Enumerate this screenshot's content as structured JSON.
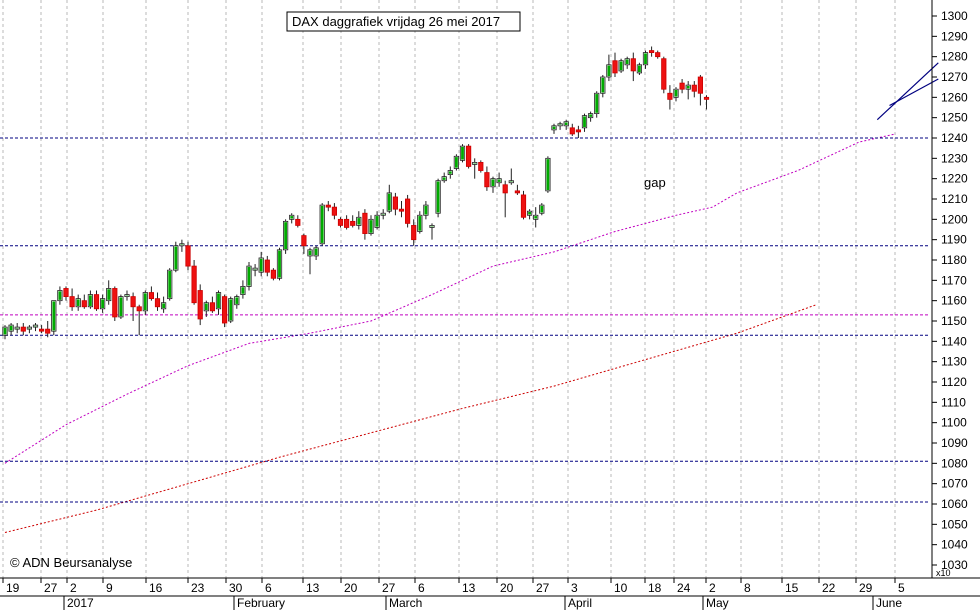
{
  "chart_data": {
    "type": "candlestick",
    "title": "DAX daggrafiek vrijdag 26 mei 2017",
    "copyright": "© ADN Beursanalyse",
    "annotation": "gap",
    "scale_marker": "x10",
    "ylim": [
      1030,
      1305
    ],
    "y_ticks": [
      1030,
      1040,
      1050,
      1060,
      1070,
      1080,
      1090,
      1100,
      1110,
      1120,
      1130,
      1140,
      1150,
      1160,
      1170,
      1180,
      1190,
      1200,
      1210,
      1220,
      1230,
      1240,
      1250,
      1260,
      1270,
      1280,
      1290,
      1300
    ],
    "x_day_labels": [
      "19",
      "27",
      "2",
      "9",
      "16",
      "23",
      "30",
      "6",
      "13",
      "20",
      "27",
      "6",
      "13",
      "20",
      "27",
      "3",
      "10",
      "18",
      "24",
      "2",
      "8",
      "15",
      "22",
      "29",
      "5"
    ],
    "x_month_labels": [
      "2017",
      "February",
      "March",
      "April",
      "May",
      "June"
    ],
    "candles": [
      {
        "o": 1143,
        "h": 1148,
        "l": 1141,
        "c": 1147
      },
      {
        "o": 1145,
        "h": 1149,
        "l": 1143,
        "c": 1148
      },
      {
        "o": 1146,
        "h": 1149,
        "l": 1144,
        "c": 1147
      },
      {
        "o": 1147,
        "h": 1149,
        "l": 1143,
        "c": 1145
      },
      {
        "o": 1146,
        "h": 1148,
        "l": 1144,
        "c": 1147
      },
      {
        "o": 1147,
        "h": 1149,
        "l": 1145,
        "c": 1148
      },
      {
        "o": 1146,
        "h": 1148,
        "l": 1144,
        "c": 1145
      },
      {
        "o": 1146,
        "h": 1150,
        "l": 1142,
        "c": 1144
      },
      {
        "o": 1145,
        "h": 1160,
        "l": 1143,
        "c": 1160
      },
      {
        "o": 1160,
        "h": 1167,
        "l": 1158,
        "c": 1165
      },
      {
        "o": 1166,
        "h": 1167,
        "l": 1160,
        "c": 1162
      },
      {
        "o": 1162,
        "h": 1166,
        "l": 1155,
        "c": 1157
      },
      {
        "o": 1157,
        "h": 1163,
        "l": 1155,
        "c": 1161
      },
      {
        "o": 1160,
        "h": 1163,
        "l": 1156,
        "c": 1157
      },
      {
        "o": 1157,
        "h": 1165,
        "l": 1156,
        "c": 1163
      },
      {
        "o": 1163,
        "h": 1165,
        "l": 1155,
        "c": 1156
      },
      {
        "o": 1156,
        "h": 1163,
        "l": 1154,
        "c": 1161
      },
      {
        "o": 1160,
        "h": 1170,
        "l": 1158,
        "c": 1166
      },
      {
        "o": 1166,
        "h": 1167,
        "l": 1150,
        "c": 1152
      },
      {
        "o": 1152,
        "h": 1163,
        "l": 1151,
        "c": 1162
      },
      {
        "o": 1162,
        "h": 1165,
        "l": 1160,
        "c": 1163
      },
      {
        "o": 1162,
        "h": 1164,
        "l": 1150,
        "c": 1157
      },
      {
        "o": 1157,
        "h": 1158,
        "l": 1143,
        "c": 1155
      },
      {
        "o": 1155,
        "h": 1165,
        "l": 1153,
        "c": 1164
      },
      {
        "o": 1164,
        "h": 1167,
        "l": 1160,
        "c": 1161
      },
      {
        "o": 1161,
        "h": 1164,
        "l": 1155,
        "c": 1157
      },
      {
        "o": 1156,
        "h": 1162,
        "l": 1154,
        "c": 1159
      },
      {
        "o": 1161,
        "h": 1176,
        "l": 1160,
        "c": 1175
      },
      {
        "o": 1175,
        "h": 1189,
        "l": 1174,
        "c": 1187
      },
      {
        "o": 1187,
        "h": 1190,
        "l": 1184,
        "c": 1188
      },
      {
        "o": 1187,
        "h": 1189,
        "l": 1175,
        "c": 1177
      },
      {
        "o": 1177,
        "h": 1180,
        "l": 1158,
        "c": 1159
      },
      {
        "o": 1165,
        "h": 1168,
        "l": 1148,
        "c": 1151
      },
      {
        "o": 1155,
        "h": 1160,
        "l": 1152,
        "c": 1159
      },
      {
        "o": 1159,
        "h": 1162,
        "l": 1154,
        "c": 1155
      },
      {
        "o": 1156,
        "h": 1165,
        "l": 1153,
        "c": 1164
      },
      {
        "o": 1162,
        "h": 1163,
        "l": 1147,
        "c": 1149
      },
      {
        "o": 1150,
        "h": 1162,
        "l": 1149,
        "c": 1161
      },
      {
        "o": 1158,
        "h": 1163,
        "l": 1156,
        "c": 1162
      },
      {
        "o": 1163,
        "h": 1170,
        "l": 1161,
        "c": 1167
      },
      {
        "o": 1167,
        "h": 1179,
        "l": 1165,
        "c": 1177
      },
      {
        "o": 1175,
        "h": 1178,
        "l": 1172,
        "c": 1176
      },
      {
        "o": 1174,
        "h": 1184,
        "l": 1172,
        "c": 1181
      },
      {
        "o": 1180,
        "h": 1182,
        "l": 1172,
        "c": 1174
      },
      {
        "o": 1175,
        "h": 1176,
        "l": 1170,
        "c": 1171
      },
      {
        "o": 1171,
        "h": 1186,
        "l": 1170,
        "c": 1185
      },
      {
        "o": 1185,
        "h": 1200,
        "l": 1183,
        "c": 1199
      },
      {
        "o": 1200,
        "h": 1203,
        "l": 1198,
        "c": 1202
      },
      {
        "o": 1200,
        "h": 1202,
        "l": 1196,
        "c": 1197
      },
      {
        "o": 1192,
        "h": 1193,
        "l": 1183,
        "c": 1187
      },
      {
        "o": 1182,
        "h": 1186,
        "l": 1173,
        "c": 1185
      },
      {
        "o": 1182,
        "h": 1187,
        "l": 1180,
        "c": 1186
      },
      {
        "o": 1188,
        "h": 1208,
        "l": 1187,
        "c": 1207
      },
      {
        "o": 1207,
        "h": 1209,
        "l": 1204,
        "c": 1206
      },
      {
        "o": 1206,
        "h": 1208,
        "l": 1200,
        "c": 1202
      },
      {
        "o": 1200,
        "h": 1201,
        "l": 1196,
        "c": 1197
      },
      {
        "o": 1200,
        "h": 1202,
        "l": 1195,
        "c": 1196
      },
      {
        "o": 1199,
        "h": 1202,
        "l": 1196,
        "c": 1197
      },
      {
        "o": 1197,
        "h": 1204,
        "l": 1195,
        "c": 1201
      },
      {
        "o": 1203,
        "h": 1205,
        "l": 1190,
        "c": 1193
      },
      {
        "o": 1193,
        "h": 1202,
        "l": 1192,
        "c": 1200
      },
      {
        "o": 1196,
        "h": 1204,
        "l": 1195,
        "c": 1202
      },
      {
        "o": 1202,
        "h": 1205,
        "l": 1200,
        "c": 1203
      },
      {
        "o": 1204,
        "h": 1217,
        "l": 1203,
        "c": 1213
      },
      {
        "o": 1211,
        "h": 1213,
        "l": 1202,
        "c": 1205
      },
      {
        "o": 1205,
        "h": 1209,
        "l": 1201,
        "c": 1204
      },
      {
        "o": 1210,
        "h": 1212,
        "l": 1196,
        "c": 1198
      },
      {
        "o": 1197,
        "h": 1200,
        "l": 1187,
        "c": 1190
      },
      {
        "o": 1194,
        "h": 1204,
        "l": 1193,
        "c": 1202
      },
      {
        "o": 1202,
        "h": 1209,
        "l": 1200,
        "c": 1207
      },
      {
        "o": 1196,
        "h": 1198,
        "l": 1190,
        "c": 1197
      },
      {
        "o": 1203,
        "h": 1220,
        "l": 1201,
        "c": 1219
      },
      {
        "o": 1219,
        "h": 1223,
        "l": 1218,
        "c": 1221
      },
      {
        "o": 1222,
        "h": 1226,
        "l": 1220,
        "c": 1224
      },
      {
        "o": 1225,
        "h": 1232,
        "l": 1224,
        "c": 1231
      },
      {
        "o": 1229,
        "h": 1237,
        "l": 1228,
        "c": 1236
      },
      {
        "o": 1236,
        "h": 1237,
        "l": 1225,
        "c": 1226
      },
      {
        "o": 1227,
        "h": 1230,
        "l": 1220,
        "c": 1228
      },
      {
        "o": 1228,
        "h": 1229,
        "l": 1223,
        "c": 1224
      },
      {
        "o": 1223,
        "h": 1226,
        "l": 1214,
        "c": 1216
      },
      {
        "o": 1216,
        "h": 1221,
        "l": 1213,
        "c": 1220
      },
      {
        "o": 1218,
        "h": 1223,
        "l": 1216,
        "c": 1220
      },
      {
        "o": 1217,
        "h": 1219,
        "l": 1201,
        "c": 1213
      },
      {
        "o": 1218,
        "h": 1225,
        "l": 1217,
        "c": 1219
      },
      {
        "o": 1214,
        "h": 1217,
        "l": 1212,
        "c": 1213
      },
      {
        "o": 1212,
        "h": 1214,
        "l": 1200,
        "c": 1201
      },
      {
        "o": 1202,
        "h": 1205,
        "l": 1200,
        "c": 1204
      },
      {
        "o": 1200,
        "h": 1206,
        "l": 1196,
        "c": 1202
      },
      {
        "o": 1203,
        "h": 1208,
        "l": 1202,
        "c": 1207
      },
      {
        "o": 1214,
        "h": 1231,
        "l": 1213,
        "c": 1230
      },
      {
        "o": 1244,
        "h": 1247,
        "l": 1242,
        "c": 1246
      },
      {
        "o": 1246,
        "h": 1248,
        "l": 1244,
        "c": 1247
      },
      {
        "o": 1246,
        "h": 1249,
        "l": 1244,
        "c": 1248
      },
      {
        "o": 1245,
        "h": 1247,
        "l": 1241,
        "c": 1242
      },
      {
        "o": 1244,
        "h": 1246,
        "l": 1240,
        "c": 1243
      },
      {
        "o": 1245,
        "h": 1252,
        "l": 1243,
        "c": 1251
      },
      {
        "o": 1250,
        "h": 1253,
        "l": 1248,
        "c": 1252
      },
      {
        "o": 1252,
        "h": 1263,
        "l": 1250,
        "c": 1262
      },
      {
        "o": 1262,
        "h": 1271,
        "l": 1260,
        "c": 1270
      },
      {
        "o": 1270,
        "h": 1281,
        "l": 1268,
        "c": 1276
      },
      {
        "o": 1278,
        "h": 1282,
        "l": 1270,
        "c": 1272
      },
      {
        "o": 1273,
        "h": 1279,
        "l": 1272,
        "c": 1278
      },
      {
        "o": 1276,
        "h": 1280,
        "l": 1274,
        "c": 1279
      },
      {
        "o": 1279,
        "h": 1282,
        "l": 1268,
        "c": 1273
      },
      {
        "o": 1272,
        "h": 1277,
        "l": 1271,
        "c": 1276
      },
      {
        "o": 1276,
        "h": 1283,
        "l": 1274,
        "c": 1282
      },
      {
        "o": 1283,
        "h": 1285,
        "l": 1280,
        "c": 1282
      },
      {
        "o": 1282,
        "h": 1283,
        "l": 1279,
        "c": 1280
      },
      {
        "o": 1279,
        "h": 1280,
        "l": 1262,
        "c": 1264
      },
      {
        "o": 1262,
        "h": 1266,
        "l": 1254,
        "c": 1259
      },
      {
        "o": 1260,
        "h": 1265,
        "l": 1258,
        "c": 1264
      },
      {
        "o": 1267,
        "h": 1269,
        "l": 1262,
        "c": 1264
      },
      {
        "o": 1264,
        "h": 1268,
        "l": 1259,
        "c": 1266
      },
      {
        "o": 1266,
        "h": 1268,
        "l": 1260,
        "c": 1263
      },
      {
        "o": 1270,
        "h": 1271,
        "l": 1256,
        "c": 1262
      },
      {
        "o": 1260,
        "h": 1261,
        "l": 1254,
        "c": 1259
      }
    ],
    "horizontal_levels": [
      {
        "value": 1240,
        "color": "#000080"
      },
      {
        "value": 1187,
        "color": "#000080"
      },
      {
        "value": 1153,
        "color": "#c000c0"
      },
      {
        "value": 1143,
        "color": "#000080"
      },
      {
        "value": 1081,
        "color": "#000080"
      },
      {
        "value": 1061,
        "color": "#000080"
      }
    ],
    "moving_averages": [
      {
        "color": "#c000c0",
        "points": [
          [
            0,
            1080
          ],
          [
            10,
            1099
          ],
          [
            20,
            1114
          ],
          [
            30,
            1128
          ],
          [
            40,
            1139
          ],
          [
            50,
            1144
          ],
          [
            60,
            1150
          ],
          [
            70,
            1163
          ],
          [
            80,
            1177
          ],
          [
            90,
            1184
          ],
          [
            100,
            1194
          ],
          [
            110,
            1202
          ],
          [
            116,
            1206
          ],
          [
            120,
            1213
          ],
          [
            130,
            1224
          ],
          [
            140,
            1238
          ],
          [
            146,
            1242
          ]
        ]
      },
      {
        "color": "#cc0000",
        "points": [
          [
            0,
            1046
          ],
          [
            15,
            1057
          ],
          [
            30,
            1070
          ],
          [
            45,
            1083
          ],
          [
            60,
            1095
          ],
          [
            75,
            1107
          ],
          [
            90,
            1118
          ],
          [
            105,
            1131
          ],
          [
            120,
            1144
          ],
          [
            133,
            1158
          ]
        ]
      }
    ],
    "trend_lines": [
      {
        "color": "#000080",
        "from": [
          143,
          1249
        ],
        "to": [
          153,
          1277
        ]
      },
      {
        "color": "#000080",
        "from": [
          145,
          1256
        ],
        "to": [
          153,
          1269
        ]
      }
    ]
  }
}
